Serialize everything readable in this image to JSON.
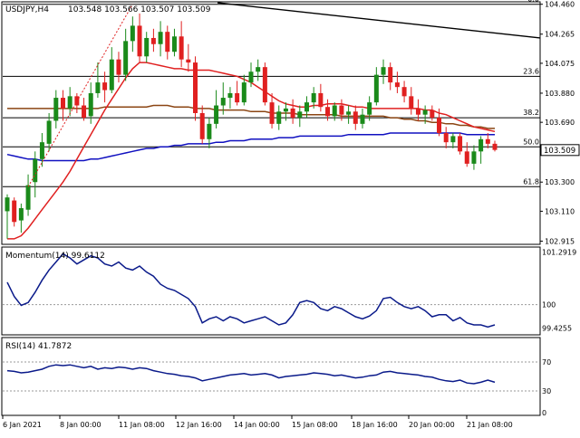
{
  "header": {
    "symbol_label": "USDJPY,H4",
    "ohlc_label": "103.548 103.566 103.507 103.509"
  },
  "colors": {
    "bull": "#1a8a1a",
    "bear": "#e02020",
    "ma_fast": "#e02020",
    "ma_mid": "#8b4513",
    "ma_slow": "#1010c0",
    "indicator_line": "#0a1a8a",
    "trend_line": "#000000",
    "fib_line": "#000000",
    "grid": "#000000",
    "price_badge_bg": "#ffffff"
  },
  "price_axis": {
    "ticks": [
      "104.460",
      "104.265",
      "104.075",
      "103.880",
      "103.690",
      "103.509",
      "103.300",
      "103.110",
      "102.915"
    ],
    "current_price": "103.509"
  },
  "fib_levels": [
    {
      "label": "0.0"
    },
    {
      "label": "23.6"
    },
    {
      "label": "38.2"
    },
    {
      "label": "50.0"
    },
    {
      "label": "61.8"
    }
  ],
  "momentum": {
    "title": "Momentum(14) 99.6112",
    "ticks": [
      "101.2919",
      "100",
      "99.4255"
    ]
  },
  "rsi": {
    "title": "RSI(14) 41.7872",
    "ticks": [
      "70",
      "30",
      "0"
    ]
  },
  "time_axis": {
    "labels": [
      "6 Jan 2021",
      "8 Jan 00:00",
      "11 Jan 08:00",
      "12 Jan 16:00",
      "14 Jan 00:00",
      "15 Jan 08:00",
      "18 Jan 16:00",
      "20 Jan 00:00",
      "21 Jan 08:00"
    ]
  },
  "chart_data": {
    "type": "candlestick",
    "y_range": [
      102.9,
      104.47
    ],
    "candles": [
      {
        "o": 103.11,
        "h": 103.22,
        "l": 102.93,
        "c": 103.2
      },
      {
        "o": 103.18,
        "h": 103.2,
        "l": 103.01,
        "c": 103.04
      },
      {
        "o": 103.05,
        "h": 103.16,
        "l": 102.97,
        "c": 103.13
      },
      {
        "o": 103.12,
        "h": 103.35,
        "l": 103.08,
        "c": 103.28
      },
      {
        "o": 103.3,
        "h": 103.5,
        "l": 103.2,
        "c": 103.45
      },
      {
        "o": 103.45,
        "h": 103.62,
        "l": 103.4,
        "c": 103.56
      },
      {
        "o": 103.55,
        "h": 103.75,
        "l": 103.5,
        "c": 103.7
      },
      {
        "o": 103.7,
        "h": 103.9,
        "l": 103.65,
        "c": 103.85
      },
      {
        "o": 103.85,
        "h": 103.9,
        "l": 103.7,
        "c": 103.78
      },
      {
        "o": 103.78,
        "h": 103.92,
        "l": 103.73,
        "c": 103.86
      },
      {
        "o": 103.86,
        "h": 103.88,
        "l": 103.75,
        "c": 103.8
      },
      {
        "o": 103.8,
        "h": 103.85,
        "l": 103.7,
        "c": 103.72
      },
      {
        "o": 103.73,
        "h": 103.95,
        "l": 103.68,
        "c": 103.88
      },
      {
        "o": 103.88,
        "h": 104.08,
        "l": 103.85,
        "c": 103.95
      },
      {
        "o": 103.95,
        "h": 104.02,
        "l": 103.82,
        "c": 103.9
      },
      {
        "o": 103.9,
        "h": 104.18,
        "l": 103.88,
        "c": 104.1
      },
      {
        "o": 104.1,
        "h": 104.15,
        "l": 103.95,
        "c": 104.0
      },
      {
        "o": 104.0,
        "h": 104.3,
        "l": 103.96,
        "c": 104.22
      },
      {
        "o": 104.22,
        "h": 104.38,
        "l": 104.15,
        "c": 104.32
      },
      {
        "o": 104.32,
        "h": 104.4,
        "l": 104.08,
        "c": 104.12
      },
      {
        "o": 104.12,
        "h": 104.28,
        "l": 104.08,
        "c": 104.24
      },
      {
        "o": 104.24,
        "h": 104.3,
        "l": 104.15,
        "c": 104.2
      },
      {
        "o": 104.2,
        "h": 104.35,
        "l": 104.12,
        "c": 104.28
      },
      {
        "o": 104.28,
        "h": 104.32,
        "l": 104.1,
        "c": 104.15
      },
      {
        "o": 104.15,
        "h": 104.3,
        "l": 104.12,
        "c": 104.25
      },
      {
        "o": 104.25,
        "h": 104.35,
        "l": 104.05,
        "c": 104.1
      },
      {
        "o": 104.1,
        "h": 104.2,
        "l": 104.02,
        "c": 104.08
      },
      {
        "o": 104.08,
        "h": 104.12,
        "l": 103.7,
        "c": 103.75
      },
      {
        "o": 103.75,
        "h": 103.8,
        "l": 103.55,
        "c": 103.58
      },
      {
        "o": 103.58,
        "h": 103.72,
        "l": 103.52,
        "c": 103.68
      },
      {
        "o": 103.68,
        "h": 103.9,
        "l": 103.65,
        "c": 103.8
      },
      {
        "o": 103.8,
        "h": 103.95,
        "l": 103.74,
        "c": 103.85
      },
      {
        "o": 103.85,
        "h": 103.92,
        "l": 103.78,
        "c": 103.88
      },
      {
        "o": 103.88,
        "h": 103.96,
        "l": 103.8,
        "c": 103.82
      },
      {
        "o": 103.82,
        "h": 104.0,
        "l": 103.8,
        "c": 103.95
      },
      {
        "o": 103.95,
        "h": 104.08,
        "l": 103.92,
        "c": 104.02
      },
      {
        "o": 104.02,
        "h": 104.1,
        "l": 103.96,
        "c": 104.05
      },
      {
        "o": 104.05,
        "h": 104.08,
        "l": 103.8,
        "c": 103.82
      },
      {
        "o": 103.82,
        "h": 103.88,
        "l": 103.65,
        "c": 103.68
      },
      {
        "o": 103.68,
        "h": 103.8,
        "l": 103.64,
        "c": 103.76
      },
      {
        "o": 103.76,
        "h": 103.82,
        "l": 103.7,
        "c": 103.78
      },
      {
        "o": 103.78,
        "h": 103.84,
        "l": 103.68,
        "c": 103.72
      },
      {
        "o": 103.72,
        "h": 103.8,
        "l": 103.66,
        "c": 103.76
      },
      {
        "o": 103.76,
        "h": 103.86,
        "l": 103.72,
        "c": 103.82
      },
      {
        "o": 103.82,
        "h": 103.92,
        "l": 103.78,
        "c": 103.88
      },
      {
        "o": 103.88,
        "h": 103.94,
        "l": 103.76,
        "c": 103.79
      },
      {
        "o": 103.79,
        "h": 103.84,
        "l": 103.7,
        "c": 103.73
      },
      {
        "o": 103.73,
        "h": 103.82,
        "l": 103.7,
        "c": 103.8
      },
      {
        "o": 103.8,
        "h": 103.84,
        "l": 103.7,
        "c": 103.74
      },
      {
        "o": 103.74,
        "h": 103.8,
        "l": 103.68,
        "c": 103.76
      },
      {
        "o": 103.76,
        "h": 103.8,
        "l": 103.64,
        "c": 103.68
      },
      {
        "o": 103.68,
        "h": 103.78,
        "l": 103.65,
        "c": 103.74
      },
      {
        "o": 103.74,
        "h": 103.86,
        "l": 103.7,
        "c": 103.82
      },
      {
        "o": 103.82,
        "h": 104.05,
        "l": 103.8,
        "c": 104.0
      },
      {
        "o": 104.0,
        "h": 104.1,
        "l": 103.94,
        "c": 104.05
      },
      {
        "o": 104.05,
        "h": 104.08,
        "l": 103.9,
        "c": 103.95
      },
      {
        "o": 103.95,
        "h": 104.02,
        "l": 103.88,
        "c": 103.92
      },
      {
        "o": 103.92,
        "h": 103.96,
        "l": 103.82,
        "c": 103.86
      },
      {
        "o": 103.86,
        "h": 103.92,
        "l": 103.74,
        "c": 103.78
      },
      {
        "o": 103.78,
        "h": 103.84,
        "l": 103.7,
        "c": 103.74
      },
      {
        "o": 103.74,
        "h": 103.8,
        "l": 103.68,
        "c": 103.77
      },
      {
        "o": 103.77,
        "h": 103.8,
        "l": 103.7,
        "c": 103.72
      },
      {
        "o": 103.72,
        "h": 103.78,
        "l": 103.6,
        "c": 103.62
      },
      {
        "o": 103.62,
        "h": 103.66,
        "l": 103.52,
        "c": 103.56
      },
      {
        "o": 103.56,
        "h": 103.62,
        "l": 103.52,
        "c": 103.6
      },
      {
        "o": 103.6,
        "h": 103.62,
        "l": 103.48,
        "c": 103.5
      },
      {
        "o": 103.5,
        "h": 103.56,
        "l": 103.4,
        "c": 103.42
      },
      {
        "o": 103.42,
        "h": 103.54,
        "l": 103.38,
        "c": 103.5
      },
      {
        "o": 103.5,
        "h": 103.6,
        "l": 103.42,
        "c": 103.58
      },
      {
        "o": 103.58,
        "h": 103.62,
        "l": 103.52,
        "c": 103.55
      },
      {
        "o": 103.55,
        "h": 103.57,
        "l": 103.5,
        "c": 103.51
      }
    ],
    "ma_fast": [
      102.93,
      102.93,
      102.95,
      103.0,
      103.06,
      103.12,
      103.18,
      103.24,
      103.3,
      103.37,
      103.45,
      103.53,
      103.61,
      103.69,
      103.77,
      103.84,
      103.91,
      103.98,
      104.04,
      104.08,
      104.08,
      104.07,
      104.06,
      104.05,
      104.04,
      104.04,
      104.03,
      104.03,
      104.03,
      104.03,
      104.02,
      104.01,
      104.0,
      103.99,
      103.97,
      103.95,
      103.92,
      103.89,
      103.86,
      103.83,
      103.81,
      103.8,
      103.79,
      103.79,
      103.8,
      103.8,
      103.81,
      103.81,
      103.81,
      103.8,
      103.79,
      103.79,
      103.78,
      103.78,
      103.78,
      103.78,
      103.78,
      103.78,
      103.78,
      103.78,
      103.77,
      103.77,
      103.75,
      103.74,
      103.72,
      103.7,
      103.68,
      103.66,
      103.65,
      103.64,
      103.63
    ],
    "ma_mid": [
      103.78,
      103.78,
      103.78,
      103.78,
      103.78,
      103.78,
      103.78,
      103.78,
      103.78,
      103.78,
      103.78,
      103.78,
      103.78,
      103.78,
      103.79,
      103.79,
      103.79,
      103.79,
      103.79,
      103.79,
      103.79,
      103.8,
      103.8,
      103.8,
      103.79,
      103.79,
      103.79,
      103.78,
      103.78,
      103.78,
      103.77,
      103.77,
      103.77,
      103.77,
      103.77,
      103.76,
      103.76,
      103.76,
      103.75,
      103.75,
      103.75,
      103.75,
      103.74,
      103.74,
      103.74,
      103.74,
      103.74,
      103.74,
      103.73,
      103.73,
      103.73,
      103.73,
      103.73,
      103.73,
      103.73,
      103.72,
      103.72,
      103.71,
      103.71,
      103.7,
      103.7,
      103.69,
      103.69,
      103.68,
      103.68,
      103.67,
      103.67,
      103.66,
      103.66,
      103.65,
      103.65
    ],
    "ma_slow": [
      103.48,
      103.47,
      103.46,
      103.45,
      103.45,
      103.44,
      103.44,
      103.44,
      103.44,
      103.44,
      103.44,
      103.44,
      103.45,
      103.45,
      103.46,
      103.47,
      103.48,
      103.49,
      103.5,
      103.51,
      103.52,
      103.52,
      103.53,
      103.53,
      103.54,
      103.54,
      103.55,
      103.55,
      103.55,
      103.55,
      103.56,
      103.56,
      103.57,
      103.57,
      103.57,
      103.58,
      103.58,
      103.58,
      103.58,
      103.59,
      103.59,
      103.59,
      103.6,
      103.6,
      103.6,
      103.6,
      103.6,
      103.6,
      103.6,
      103.61,
      103.61,
      103.61,
      103.61,
      103.61,
      103.61,
      103.62,
      103.62,
      103.62,
      103.62,
      103.62,
      103.62,
      103.62,
      103.62,
      103.62,
      103.62,
      103.62,
      103.61,
      103.61,
      103.61,
      103.61,
      103.61
    ],
    "trend_line": {
      "start_price": 104.47,
      "end_price": 104.24
    },
    "fib_prices": [
      104.46,
      103.99,
      103.72,
      103.53,
      103.27
    ],
    "momentum_range": [
      99.3,
      101.35
    ],
    "momentum_values": [
      100.55,
      100.2,
      99.98,
      100.05,
      100.3,
      100.6,
      100.85,
      101.05,
      101.25,
      101.15,
      101.0,
      101.1,
      101.2,
      101.15,
      101.0,
      100.95,
      101.05,
      100.9,
      100.85,
      100.95,
      100.8,
      100.7,
      100.5,
      100.4,
      100.35,
      100.25,
      100.15,
      99.95,
      99.55,
      99.65,
      99.7,
      99.6,
      99.7,
      99.65,
      99.55,
      99.6,
      99.65,
      99.7,
      99.6,
      99.5,
      99.55,
      99.75,
      100.05,
      100.1,
      100.05,
      99.9,
      99.85,
      99.95,
      99.9,
      99.8,
      99.7,
      99.65,
      99.72,
      99.85,
      100.15,
      100.18,
      100.05,
      99.95,
      99.9,
      99.95,
      99.85,
      99.7,
      99.75,
      99.75,
      99.6,
      99.68,
      99.55,
      99.5,
      99.5,
      99.45,
      99.5
    ],
    "rsi_values": [
      58,
      57,
      55,
      56,
      58,
      60,
      64,
      66,
      65,
      66,
      64,
      62,
      64,
      60,
      62,
      61,
      63,
      62,
      60,
      62,
      61,
      58,
      56,
      54,
      53,
      51,
      50,
      48,
      44,
      46,
      48,
      50,
      52,
      53,
      54,
      52,
      53,
      54,
      52,
      48,
      50,
      51,
      52,
      53,
      55,
      54,
      53,
      51,
      52,
      50,
      48,
      49,
      51,
      52,
      56,
      57,
      55,
      54,
      53,
      52,
      50,
      49,
      46,
      44,
      43,
      45,
      41,
      40,
      42,
      45,
      42
    ]
  }
}
